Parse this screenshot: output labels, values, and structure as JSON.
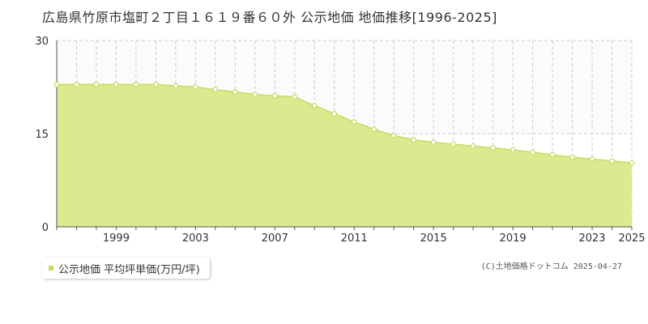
{
  "header": {
    "title": "広島県竹原市塩町２丁目１６１９番６０外 公示地価 地価推移[1996-2025]"
  },
  "legend": {
    "label": "公示地価 平均坪単価(万円/坪)"
  },
  "footer": {
    "credit": "(C)土地価格ドットコム 2025-04-27"
  },
  "colors": {
    "fill": "#dde98f",
    "line": "#c5dc5e",
    "grid": "#cccccc",
    "axis": "#555555"
  },
  "chart_data": {
    "type": "area",
    "title": "",
    "xlabel": "",
    "ylabel": "",
    "ylim": [
      0,
      30
    ],
    "yticks": [
      0,
      15,
      30
    ],
    "xticks": [
      1999,
      2003,
      2007,
      2011,
      2015,
      2019,
      2023,
      2025
    ],
    "grid": true,
    "x": [
      1996,
      1997,
      1998,
      1999,
      2000,
      2001,
      2002,
      2003,
      2004,
      2005,
      2006,
      2007,
      2008,
      2009,
      2010,
      2011,
      2012,
      2013,
      2014,
      2015,
      2016,
      2017,
      2018,
      2019,
      2020,
      2021,
      2022,
      2023,
      2024,
      2025
    ],
    "series": [
      {
        "name": "公示地価 平均坪単価(万円/坪)",
        "values": [
          22.9,
          22.9,
          22.9,
          22.9,
          22.9,
          22.9,
          22.7,
          22.5,
          22.1,
          21.7,
          21.3,
          21.1,
          20.9,
          19.5,
          18.2,
          16.9,
          15.7,
          14.7,
          14.0,
          13.6,
          13.3,
          13.0,
          12.7,
          12.4,
          12.0,
          11.6,
          11.2,
          10.9,
          10.6,
          10.3
        ]
      }
    ]
  }
}
